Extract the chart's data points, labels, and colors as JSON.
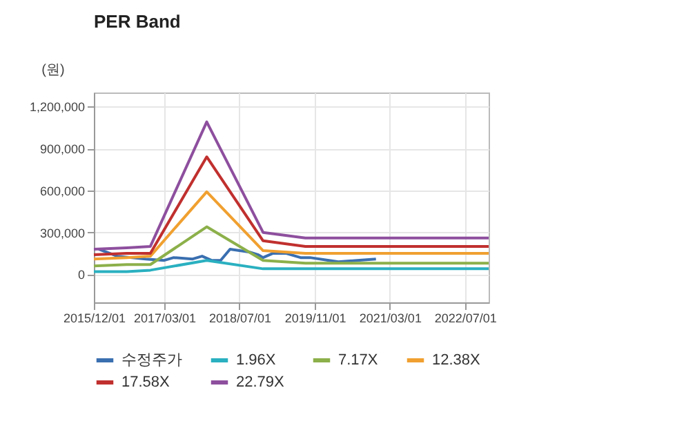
{
  "chart_data": {
    "type": "line",
    "title": "PER Band",
    "ylabel": "(원)",
    "x": [
      "2015-12",
      "2016-07",
      "2016-12",
      "2017-12",
      "2018-12",
      "2019-09",
      "2022-12"
    ],
    "series": [
      {
        "name": "수정주가",
        "color": "#3a6fb0",
        "x": [
          "2016-01",
          "2016-05",
          "2016-11",
          "2017-03",
          "2017-05",
          "2017-09",
          "2017-11",
          "2018-01",
          "2018-03",
          "2018-05",
          "2018-07",
          "2018-09",
          "2018-11",
          "2018-12",
          "2019-02",
          "2019-05",
          "2019-08",
          "2019-10",
          "2020-02",
          "2020-04",
          "2020-08",
          "2020-12"
        ],
        "values": [
          180000,
          130000,
          110000,
          100000,
          120000,
          110000,
          130000,
          100000,
          100000,
          180000,
          170000,
          160000,
          140000,
          120000,
          150000,
          150000,
          120000,
          120000,
          100000,
          90000,
          100000,
          110000
        ]
      },
      {
        "name": "1.96X",
        "color": "#2ab0c0",
        "values": [
          20000,
          20000,
          30000,
          100000,
          40000,
          40000,
          40000
        ]
      },
      {
        "name": "7.17X",
        "color": "#8cb04a",
        "values": [
          60000,
          70000,
          70000,
          340000,
          100000,
          80000,
          80000
        ]
      },
      {
        "name": "12.38X",
        "color": "#f0a030",
        "values": [
          110000,
          120000,
          130000,
          590000,
          170000,
          150000,
          150000
        ]
      },
      {
        "name": "17.58X",
        "color": "#c0302e",
        "values": [
          140000,
          150000,
          150000,
          840000,
          240000,
          200000,
          200000
        ]
      },
      {
        "name": "22.79X",
        "color": "#8e4f9e",
        "values": [
          180000,
          190000,
          200000,
          1090000,
          300000,
          260000,
          260000
        ]
      }
    ],
    "xlim": [
      "2015-12",
      "2022-12"
    ],
    "xticks": [
      {
        "value": "2015-12-01",
        "label": "2015/12/01"
      },
      {
        "value": "2017-03-01",
        "label": "2017/03/01"
      },
      {
        "value": "2018-07-01",
        "label": "2018/07/01"
      },
      {
        "value": "2019-11-01",
        "label": "2019/11/01"
      },
      {
        "value": "2021-03-01",
        "label": "2021/03/01"
      },
      {
        "value": "2022-07-01",
        "label": "2022/07/01"
      }
    ],
    "ylim": [
      -200000,
      1300000
    ],
    "yticks": [
      0,
      {
        "value": 300000,
        "label": "300,000"
      },
      {
        "value": 600000,
        "label": "600,000"
      },
      {
        "value": 900000,
        "label": "900,000"
      },
      {
        "value": 1200000,
        "label": "1,200,000"
      }
    ],
    "grid": true,
    "legend": "bottom",
    "marker": "none",
    "line_style": "solid"
  }
}
